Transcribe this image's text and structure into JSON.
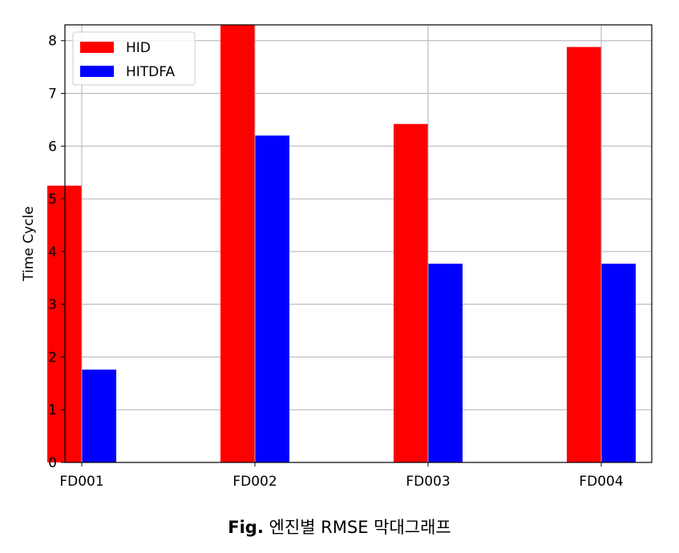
{
  "chart_data": {
    "type": "bar",
    "categories": [
      "FD001",
      "FD002",
      "FD003",
      "FD004"
    ],
    "series": [
      {
        "name": "HID",
        "values": [
          5.25,
          8.3,
          6.42,
          7.88
        ],
        "color": "#ff0000"
      },
      {
        "name": "HITDFA",
        "values": [
          1.76,
          6.2,
          3.77,
          3.77
        ],
        "color": "#0000ff"
      }
    ],
    "ylabel": "Time Cycle",
    "xlabel": "",
    "ylim": [
      0,
      8.3
    ],
    "yticks": [
      0,
      1,
      2,
      3,
      4,
      5,
      6,
      7,
      8
    ],
    "grid": true,
    "legend": "top-left"
  },
  "caption": {
    "prefix": "Fig.",
    "text": "엔진별 RMSE 막대그래프"
  }
}
